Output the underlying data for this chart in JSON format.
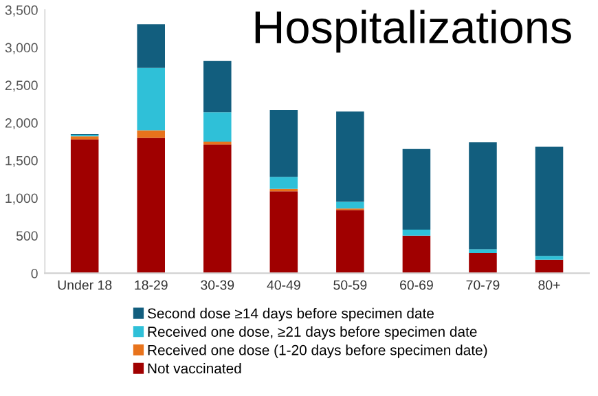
{
  "chart_data": {
    "type": "bar",
    "stacked": true,
    "title": "Hospitalizations",
    "categories": [
      "Under 18",
      "18-29",
      "30-39",
      "40-49",
      "50-59",
      "60-69",
      "70-79",
      "80+"
    ],
    "series": [
      {
        "name": "Not vaccinated",
        "color": "#a00000",
        "values": [
          1780,
          1800,
          1710,
          1090,
          840,
          500,
          270,
          180
        ]
      },
      {
        "name": "Received one dose (1-20 days before specimen date)",
        "color": "#e8731c",
        "values": [
          40,
          100,
          40,
          30,
          20,
          null,
          null,
          null
        ]
      },
      {
        "name": "Received one dose, ≥21 days before specimen date",
        "color": "#2fc0d8",
        "values": [
          20,
          830,
          390,
          160,
          90,
          80,
          50,
          50
        ]
      },
      {
        "name": "Second dose ≥14 days before specimen date",
        "color": "#125e7e",
        "values": [
          10,
          580,
          680,
          890,
          1200,
          1070,
          1420,
          1450
        ]
      }
    ],
    "ylim": [
      0,
      3500
    ],
    "yticks": [
      {
        "value": 0,
        "label": "0"
      },
      {
        "value": 500,
        "label": "500"
      },
      {
        "value": 1000,
        "label": "1,000"
      },
      {
        "value": 1500,
        "label": "1,500"
      },
      {
        "value": 2000,
        "label": "2,000"
      },
      {
        "value": 2500,
        "label": "2,500"
      },
      {
        "value": 3000,
        "label": "3,000"
      },
      {
        "value": 3500,
        "label": "3,500"
      }
    ],
    "grid": false,
    "legend": "bottom"
  }
}
